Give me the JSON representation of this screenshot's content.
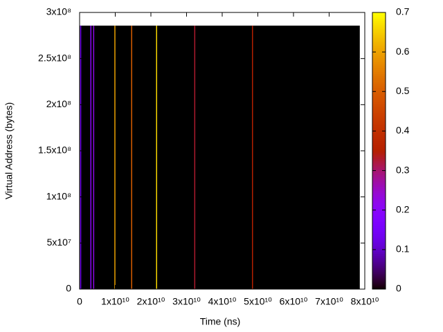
{
  "chart_data": {
    "type": "heatmap",
    "xlabel": "Time (ns)",
    "ylabel": "Virtual Address (bytes)",
    "xlim": [
      0,
      80000000000
    ],
    "xticks": [
      0,
      {
        "value": 10000000000,
        "label": "1x10¹⁰"
      },
      {
        "value": 20000000000,
        "label": "2x10¹⁰"
      },
      {
        "value": 30000000000,
        "label": "3x10¹⁰"
      },
      {
        "value": 40000000000,
        "label": "4x10¹⁰"
      },
      {
        "value": 50000000000,
        "label": "5x10¹⁰"
      },
      {
        "value": 60000000000,
        "label": "6x10¹⁰"
      },
      {
        "value": 70000000000,
        "label": "7x10¹⁰"
      },
      {
        "value": 80000000000,
        "label": "8x10¹⁰"
      }
    ],
    "ylim": [
      0,
      300000000
    ],
    "yticks": [
      0,
      {
        "value": 50000000,
        "label": "5x10⁷"
      },
      {
        "value": 100000000,
        "label": "1x10⁸"
      },
      {
        "value": 150000000,
        "label": "1.5x10⁸"
      },
      {
        "value": 200000000,
        "label": "2x10⁸"
      },
      {
        "value": 250000000,
        "label": "2.5x10⁸"
      },
      {
        "value": 300000000,
        "label": "3x10⁸"
      }
    ],
    "cblim": [
      0,
      0.7
    ],
    "cbticks": [
      0,
      0.1,
      0.2,
      0.3,
      0.4,
      0.5,
      0.6,
      0.7
    ],
    "image_x": [
      0,
      78600000000
    ],
    "image_y": [
      0,
      285700000
    ],
    "image_value": 0,
    "stripes": [
      {
        "x": 300000000,
        "value": 0.15
      },
      {
        "x": 3160000000,
        "value": 0.2
      },
      {
        "x": 3950000000,
        "value": 0.22
      },
      {
        "x": 9900000000,
        "value": 0.6
      },
      {
        "x": 14600000000,
        "value": 0.5
      },
      {
        "x": 21600000000,
        "value": 0.66
      },
      {
        "x": 32300000000,
        "value": 0.33
      },
      {
        "x": 48500000000,
        "value": 0.35
      }
    ]
  }
}
